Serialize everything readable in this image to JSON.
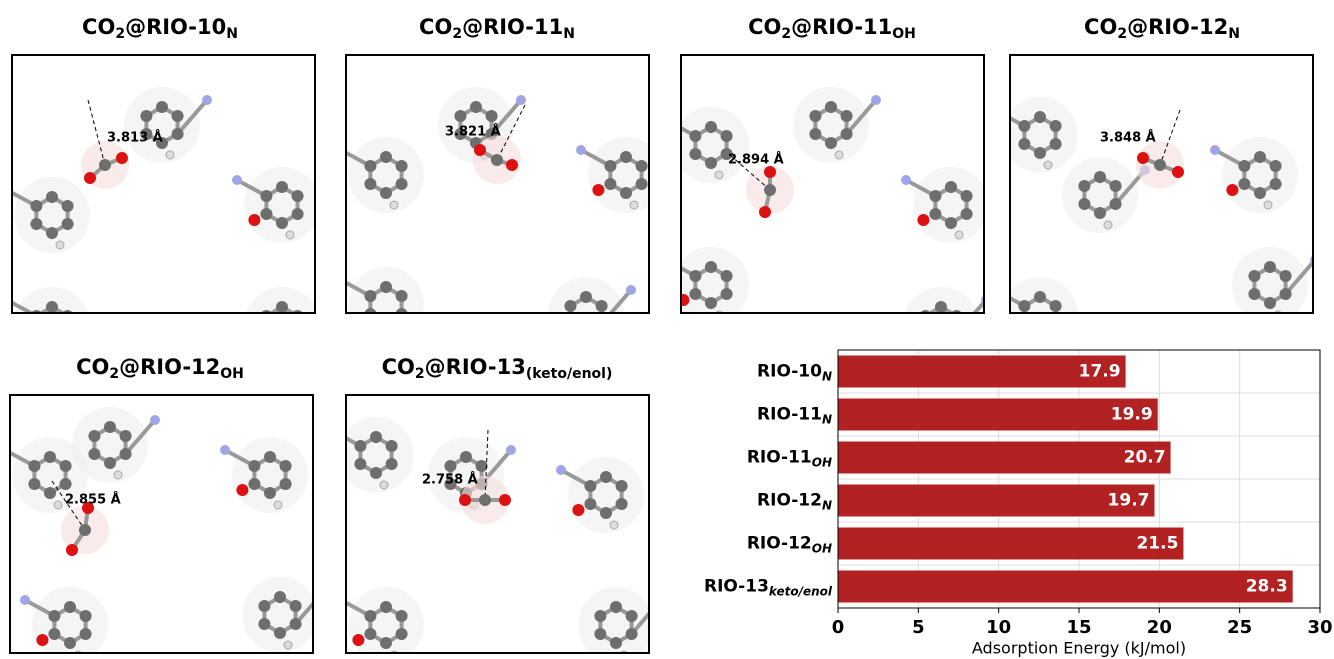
{
  "panels": [
    {
      "title": {
        "prefix": "CO",
        "sub1": "2",
        "main": "@RIO-10",
        "sub2": "N"
      },
      "distance": "3.813 Å"
    },
    {
      "title": {
        "prefix": "CO",
        "sub1": "2",
        "main": "@RIO-11",
        "sub2": "N"
      },
      "distance": "3.821 Å"
    },
    {
      "title": {
        "prefix": "CO",
        "sub1": "2",
        "main": "@RIO-11",
        "sub2": "OH"
      },
      "distance": "2.894 Å"
    },
    {
      "title": {
        "prefix": "CO",
        "sub1": "2",
        "main": "@RIO-12",
        "sub2": "N"
      },
      "distance": "3.848 Å"
    },
    {
      "title": {
        "prefix": "CO",
        "sub1": "2",
        "main": "@RIO-12",
        "sub2": "OH"
      },
      "distance": "2.855 Å"
    },
    {
      "title": {
        "prefix": "CO",
        "sub1": "2",
        "main": "@RIO-13",
        "sub2": "(keto/enol)"
      },
      "distance": "2.758 Å"
    }
  ],
  "chart_data": {
    "type": "barh",
    "categories": [
      "RIO-10",
      "RIO-11",
      "RIO-11",
      "RIO-12",
      "RIO-12",
      "RIO-13"
    ],
    "category_subscripts": [
      "N",
      "N",
      "OH",
      "N",
      "OH",
      "keto/enol"
    ],
    "values": [
      17.9,
      19.9,
      20.7,
      19.7,
      21.5,
      28.3
    ],
    "color": "#b22222",
    "xlabel": "Adsorption Energy (kJ/mol)",
    "xlim": [
      0,
      30
    ],
    "xticks": [
      0,
      5,
      10,
      15,
      20,
      25,
      30
    ],
    "grid": true
  }
}
